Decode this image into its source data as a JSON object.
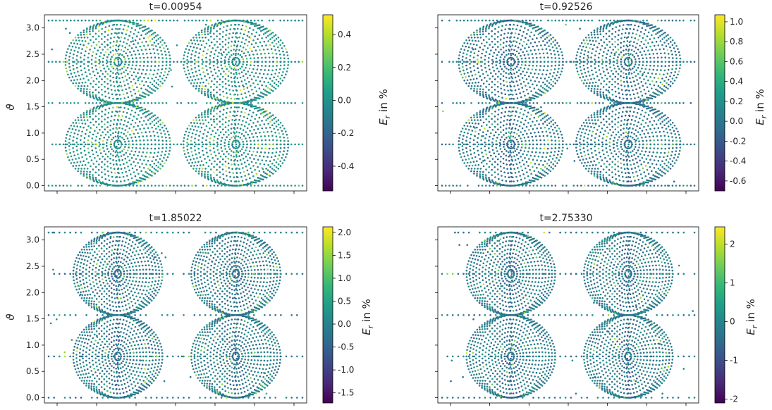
{
  "figure": {
    "type": "scatter",
    "colormap": "viridis",
    "colormap_stops": [
      "#440154",
      "#482878",
      "#3e4989",
      "#31688e",
      "#26828e",
      "#1f9e89",
      "#35b779",
      "#6ece58",
      "#b5de2b",
      "#fde725"
    ]
  },
  "chart_data": [
    {
      "type": "scatter",
      "title": "t=0.00954",
      "ylabel": "ϑ",
      "xlabel": "",
      "ylim": [
        -0.1,
        3.25
      ],
      "yticks": [
        "0.0",
        "0.5",
        "1.0",
        "1.5",
        "2.0",
        "2.5",
        "3.0"
      ],
      "xticks_labels_visible": false,
      "colorbar": {
        "label": "E_r in %",
        "range": [
          -0.55,
          0.52
        ],
        "ticks": [
          "-0.4",
          "-0.2",
          "0.0",
          "0.2",
          "0.4"
        ],
        "tick_values": [
          -0.4,
          -0.2,
          0.0,
          0.2,
          0.4
        ]
      }
    },
    {
      "type": "scatter",
      "title": "t=0.92526",
      "ylabel": "",
      "xlabel": "",
      "ylim": [
        -0.1,
        3.25
      ],
      "yticks_labels_visible": false,
      "xticks_labels_visible": false,
      "colorbar": {
        "label": "E_r in %",
        "range": [
          -0.7,
          1.07
        ],
        "ticks": [
          "-0.6",
          "-0.4",
          "-0.2",
          "0.0",
          "0.2",
          "0.4",
          "0.6",
          "0.8",
          "1.0"
        ],
        "tick_values": [
          -0.6,
          -0.4,
          -0.2,
          0.0,
          0.2,
          0.4,
          0.6,
          0.8,
          1.0
        ]
      }
    },
    {
      "type": "scatter",
      "title": "t=1.85022",
      "ylabel": "ϑ",
      "xlabel": "",
      "ylim": [
        -0.1,
        3.25
      ],
      "yticks": [
        "0.0",
        "0.5",
        "1.0",
        "1.5",
        "2.0",
        "2.5",
        "3.0"
      ],
      "xticks_labels_visible": false,
      "colorbar": {
        "label": "E_r in %",
        "range": [
          -1.72,
          2.12
        ],
        "ticks": [
          "-1.5",
          "-1.0",
          "-0.5",
          "0.0",
          "0.5",
          "1.0",
          "1.5",
          "2.0"
        ],
        "tick_values": [
          -1.5,
          -1.0,
          -0.5,
          0.0,
          0.5,
          1.0,
          1.5,
          2.0
        ]
      }
    },
    {
      "type": "scatter",
      "title": "t=2.75330",
      "ylabel": "",
      "xlabel": "",
      "ylim": [
        -0.1,
        3.25
      ],
      "yticks_labels_visible": false,
      "xticks_labels_visible": false,
      "colorbar": {
        "label": "E_r in %",
        "range": [
          -2.1,
          2.45
        ],
        "ticks": [
          "-2",
          "-1",
          "0",
          "1",
          "2"
        ],
        "tick_values": [
          -2,
          -1,
          0,
          1,
          2
        ]
      }
    }
  ]
}
